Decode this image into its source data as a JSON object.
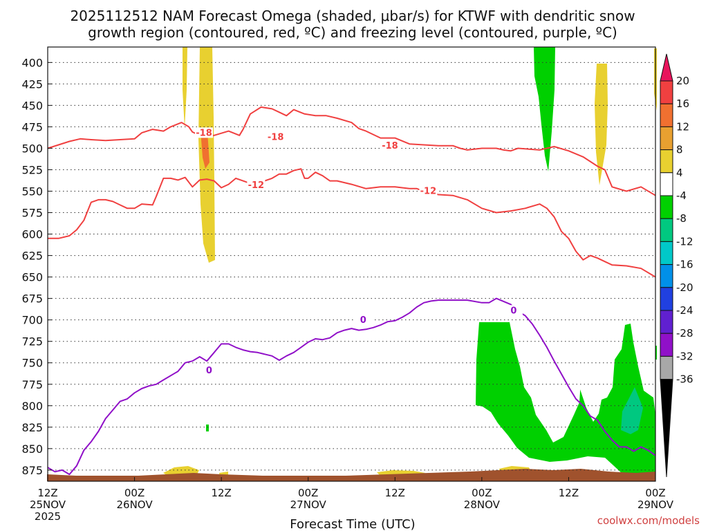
{
  "chart_data": {
    "type": "time-height cross section",
    "title_line1": "2025112512 NAM Forecast Omega (shaded, μbar/s) for KTWF with dendritic snow",
    "title_line2": "growth region (contoured, red, ºC) and freezing level (contoured, purple, ºC)",
    "xlabel": "Forecast Time (UTC)",
    "start_year": "2025",
    "x_ticks": [
      {
        "hour": 0,
        "time": "12Z",
        "date": "25NOV"
      },
      {
        "hour": 12,
        "time": "00Z",
        "date": "26NOV"
      },
      {
        "hour": 24,
        "time": "12Z",
        "date": ""
      },
      {
        "hour": 36,
        "time": "00Z",
        "date": "27NOV"
      },
      {
        "hour": 48,
        "time": "12Z",
        "date": ""
      },
      {
        "hour": 60,
        "time": "00Z",
        "date": "28NOV"
      },
      {
        "hour": 72,
        "time": "12Z",
        "date": ""
      },
      {
        "hour": 84,
        "time": "00Z",
        "date": "29NOV"
      }
    ],
    "xlim_hours": [
      0,
      84
    ],
    "ylim_mb": [
      382,
      888
    ],
    "y_ticks_mb": [
      400,
      425,
      450,
      475,
      500,
      525,
      550,
      575,
      600,
      625,
      650,
      675,
      700,
      725,
      750,
      775,
      800,
      825,
      850,
      875
    ],
    "colorbar": {
      "labels": [
        "20",
        "16",
        "12",
        "8",
        "4",
        "-4",
        "-8",
        "-12",
        "-16",
        "-20",
        "-24",
        "-28",
        "-32",
        "-36"
      ],
      "bands": [
        {
          "color": "#e8155c"
        },
        {
          "color": "#f04040"
        },
        {
          "color": "#f07030"
        },
        {
          "color": "#e8a030"
        },
        {
          "color": "#e8d030"
        },
        {
          "color": "#ffffff"
        },
        {
          "color": "#00d000"
        },
        {
          "color": "#00c880"
        },
        {
          "color": "#00c8c8"
        },
        {
          "color": "#0090e8"
        },
        {
          "color": "#2040e0"
        },
        {
          "color": "#6020d0"
        },
        {
          "color": "#9010c8"
        },
        {
          "color": "#a8a8a8"
        },
        {
          "color": "#000000"
        }
      ]
    },
    "contours": [
      {
        "name": "minus-18-isotherm",
        "label": "-18",
        "color": "#f04040",
        "points": [
          [
            0,
            500
          ],
          [
            1.5,
            496
          ],
          [
            3,
            492
          ],
          [
            4.5,
            489
          ],
          [
            6,
            490
          ],
          [
            8,
            491
          ],
          [
            10,
            490
          ],
          [
            12,
            489
          ],
          [
            13,
            482
          ],
          [
            14.5,
            478
          ],
          [
            16,
            480
          ],
          [
            17,
            475
          ],
          [
            18.5,
            470
          ],
          [
            19.5,
            475
          ],
          [
            20,
            481
          ],
          [
            21.5,
            487
          ],
          [
            23,
            485
          ],
          [
            25,
            480
          ],
          [
            26.5,
            485
          ],
          [
            27,
            478
          ],
          [
            28,
            460
          ],
          [
            29.5,
            452
          ],
          [
            31,
            454
          ],
          [
            32,
            458
          ],
          [
            33,
            462
          ],
          [
            34,
            455
          ],
          [
            35.5,
            460
          ],
          [
            37,
            462
          ],
          [
            38.5,
            462
          ],
          [
            40,
            465
          ],
          [
            42,
            470
          ],
          [
            43,
            477
          ],
          [
            44,
            480
          ],
          [
            46,
            488
          ],
          [
            48,
            488
          ],
          [
            50,
            495
          ],
          [
            52,
            496
          ],
          [
            54,
            497
          ],
          [
            55,
            497
          ],
          [
            56,
            497
          ],
          [
            57,
            500
          ],
          [
            58,
            502
          ],
          [
            60,
            500
          ],
          [
            62,
            500
          ],
          [
            63,
            502
          ],
          [
            64,
            503
          ],
          [
            65,
            500
          ],
          [
            68,
            502
          ],
          [
            70,
            498
          ],
          [
            72,
            503
          ],
          [
            74,
            510
          ],
          [
            76,
            521
          ],
          [
            77,
            525
          ],
          [
            78,
            545
          ],
          [
            80,
            550
          ],
          [
            82,
            545
          ],
          [
            84,
            555
          ]
        ],
        "label_positions": [
          [
            21.6,
            483
          ],
          [
            31.5,
            488
          ],
          [
            47.3,
            498
          ]
        ]
      },
      {
        "name": "minus-12-isotherm",
        "label": "-12",
        "color": "#f04040",
        "points": [
          [
            0,
            605
          ],
          [
            1.5,
            605
          ],
          [
            3,
            602
          ],
          [
            4,
            595
          ],
          [
            5,
            584
          ],
          [
            6,
            563
          ],
          [
            7,
            560
          ],
          [
            8,
            560
          ],
          [
            9,
            562
          ],
          [
            10,
            566
          ],
          [
            11,
            570
          ],
          [
            12,
            570
          ],
          [
            13,
            565
          ],
          [
            14.5,
            566
          ],
          [
            15,
            556
          ],
          [
            16,
            535
          ],
          [
            17,
            535
          ],
          [
            18,
            537
          ],
          [
            19,
            534
          ],
          [
            20,
            545
          ],
          [
            21,
            537
          ],
          [
            22,
            536
          ],
          [
            23,
            538
          ],
          [
            24,
            546
          ],
          [
            25,
            542
          ],
          [
            26,
            535
          ],
          [
            27,
            538
          ],
          [
            28,
            541
          ],
          [
            29,
            540
          ],
          [
            30,
            538
          ],
          [
            31,
            535
          ],
          [
            32,
            530
          ],
          [
            33,
            530
          ],
          [
            34,
            526
          ],
          [
            35,
            524
          ],
          [
            35.5,
            535
          ],
          [
            36,
            535
          ],
          [
            37,
            528
          ],
          [
            38,
            532
          ],
          [
            39,
            538
          ],
          [
            40,
            538
          ],
          [
            42,
            542
          ],
          [
            44,
            547
          ],
          [
            46,
            545
          ],
          [
            48,
            545
          ],
          [
            50,
            547
          ],
          [
            51,
            547
          ],
          [
            52,
            550
          ],
          [
            54,
            554
          ],
          [
            56,
            555
          ],
          [
            58,
            560
          ],
          [
            60,
            570
          ],
          [
            62,
            575
          ],
          [
            64,
            573
          ],
          [
            66,
            570
          ],
          [
            68,
            565
          ],
          [
            69,
            570
          ],
          [
            70,
            580
          ],
          [
            71,
            597
          ],
          [
            72,
            605
          ],
          [
            73,
            620
          ],
          [
            74,
            630
          ],
          [
            75,
            625
          ],
          [
            76,
            628
          ],
          [
            77,
            632
          ],
          [
            78,
            636
          ],
          [
            80,
            637
          ],
          [
            82,
            640
          ],
          [
            84,
            650
          ]
        ],
        "label_positions": [
          [
            28.8,
            544
          ],
          [
            52.6,
            551
          ]
        ]
      },
      {
        "name": "zero-isotherm",
        "label": "0",
        "color": "#9010c8",
        "points": [
          [
            0,
            872
          ],
          [
            1,
            877
          ],
          [
            2,
            875
          ],
          [
            3,
            880
          ],
          [
            4,
            870
          ],
          [
            5,
            852
          ],
          [
            6,
            842
          ],
          [
            7,
            830
          ],
          [
            8,
            815
          ],
          [
            9,
            805
          ],
          [
            10,
            795
          ],
          [
            11,
            792
          ],
          [
            12,
            785
          ],
          [
            13,
            780
          ],
          [
            14,
            777
          ],
          [
            15,
            775
          ],
          [
            16,
            770
          ],
          [
            18,
            760
          ],
          [
            19,
            750
          ],
          [
            20,
            748
          ],
          [
            21,
            743
          ],
          [
            22,
            748
          ],
          [
            23,
            738
          ],
          [
            24,
            728
          ],
          [
            25,
            728
          ],
          [
            26,
            732
          ],
          [
            27,
            735
          ],
          [
            28,
            737
          ],
          [
            29,
            738
          ],
          [
            30,
            740
          ],
          [
            31,
            742
          ],
          [
            32,
            747
          ],
          [
            33,
            742
          ],
          [
            34,
            738
          ],
          [
            35,
            732
          ],
          [
            36,
            726
          ],
          [
            37,
            722
          ],
          [
            38,
            723
          ],
          [
            39,
            721
          ],
          [
            40,
            715
          ],
          [
            41,
            712
          ],
          [
            42,
            710
          ],
          [
            43,
            712
          ],
          [
            44,
            711
          ],
          [
            45,
            709
          ],
          [
            46,
            706
          ],
          [
            47,
            702
          ],
          [
            48,
            701
          ],
          [
            49,
            697
          ],
          [
            50,
            692
          ],
          [
            51,
            685
          ],
          [
            52,
            680
          ],
          [
            53,
            678
          ],
          [
            54,
            677
          ],
          [
            55,
            677
          ],
          [
            57,
            677
          ],
          [
            58,
            677
          ],
          [
            60,
            680
          ],
          [
            61,
            680
          ],
          [
            62,
            675
          ],
          [
            64,
            682
          ],
          [
            65,
            690
          ],
          [
            66,
            695
          ],
          [
            67,
            705
          ],
          [
            68,
            718
          ],
          [
            69,
            732
          ],
          [
            70,
            748
          ],
          [
            71,
            763
          ],
          [
            72,
            778
          ],
          [
            73,
            792
          ],
          [
            74,
            800
          ],
          [
            75,
            812
          ],
          [
            76,
            817
          ],
          [
            77,
            830
          ],
          [
            78,
            840
          ],
          [
            79,
            848
          ],
          [
            80,
            848
          ],
          [
            81,
            853
          ],
          [
            82,
            848
          ],
          [
            83,
            852
          ],
          [
            84,
            858
          ]
        ],
        "label_positions": [
          [
            22.3,
            760
          ],
          [
            43.6,
            701
          ],
          [
            64.4,
            690
          ]
        ]
      }
    ]
  },
  "footer": {
    "credit": "coolwx.com/models"
  }
}
